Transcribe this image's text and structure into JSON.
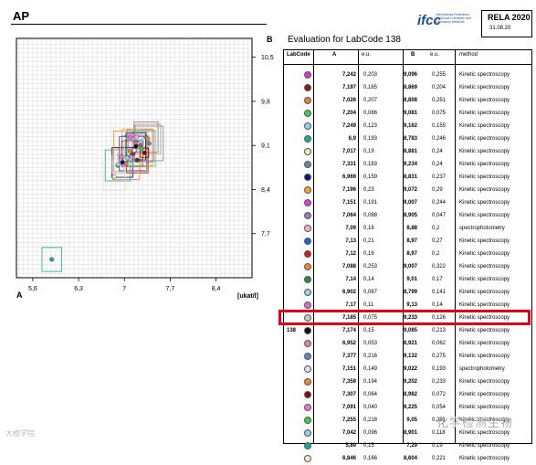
{
  "title": "AP",
  "logo": {
    "text": "ifcc",
    "subtext": "International Federation of Clinical Chemistry and Laboratory Medicine"
  },
  "rela": {
    "label": "RELA 2020",
    "date": "31.08.20"
  },
  "evaluation_title": "Evaluation for LabCode 138",
  "table": {
    "headers": {
      "labcode": "LabCode",
      "a": "A",
      "ea": "e.u.",
      "b": "B",
      "eb": "e.u.",
      "method": "method"
    },
    "highlight_labcode": "138",
    "rows": [
      {
        "a": "7,242",
        "ea": "0,203",
        "b": "9,096",
        "eb": "0,255",
        "method": "Kinetic spectroscopy",
        "color": "#d63ad6"
      },
      {
        "a": "7,197",
        "ea": "0,165",
        "b": "8,869",
        "eb": "0,204",
        "method": "Kinetic spectroscopy",
        "color": "#8b1a1a"
      },
      {
        "a": "7,026",
        "ea": "0,207",
        "b": "8,808",
        "eb": "0,251",
        "method": "Kinetic spectroscopy",
        "color": "#e8823a"
      },
      {
        "a": "7,204",
        "ea": "0,086",
        "b": "9,081",
        "eb": "0,075",
        "method": "Kinetic spectroscopy",
        "color": "#3ecf4a"
      },
      {
        "a": "7,249",
        "ea": "0,123",
        "b": "9,162",
        "eb": "0,155",
        "method": "Kinetic spectroscopy",
        "color": "#8fd0ea"
      },
      {
        "a": "6,9",
        "ea": "0,193",
        "b": "8,783",
        "eb": "0,246",
        "method": "Kinetic spectroscopy",
        "color": "#1fa79a"
      },
      {
        "a": "7,017",
        "ea": "0,19",
        "b": "8,881",
        "eb": "0,24",
        "method": "Kinetic spectroscopy",
        "color": "#f6e6c0"
      },
      {
        "a": "7,331",
        "ea": "0,183",
        "b": "9,234",
        "eb": "0,24",
        "method": "Kinetic spectroscopy",
        "color": "#7080a8"
      },
      {
        "a": "6,969",
        "ea": "0,159",
        "b": "8,831",
        "eb": "0,237",
        "method": "Kinetic spectroscopy",
        "color": "#0a1a7a"
      },
      {
        "a": "7,196",
        "ea": "0,23",
        "b": "9,072",
        "eb": "0,29",
        "method": "Kinetic spectroscopy",
        "color": "#f5a623"
      },
      {
        "a": "7,151",
        "ea": "0,191",
        "b": "9,007",
        "eb": "0,244",
        "method": "Kinetic spectroscopy",
        "color": "#e040e0"
      },
      {
        "a": "7,064",
        "ea": "0,088",
        "b": "8,905",
        "eb": "0,047",
        "method": "Kinetic spectroscopy",
        "color": "#9a7ad0"
      },
      {
        "a": "7,09",
        "ea": "0,16",
        "b": "8,88",
        "eb": "0,2",
        "method": "spectrophotometry",
        "color": "#f4b0c8"
      },
      {
        "a": "7,13",
        "ea": "0,21",
        "b": "8,97",
        "eb": "0,27",
        "method": "Kinetic spectroscopy",
        "color": "#2a5fc0"
      },
      {
        "a": "7,12",
        "ea": "0,16",
        "b": "8,97",
        "eb": "0,2",
        "method": "Kinetic spectroscopy",
        "color": "#d01a1a"
      },
      {
        "a": "7,088",
        "ea": "0,253",
        "b": "9,007",
        "eb": "0,322",
        "method": "Kinetic spectroscopy",
        "color": "#f08a30"
      },
      {
        "a": "7,14",
        "ea": "0,14",
        "b": "9,01",
        "eb": "0,17",
        "method": "Kinetic spectroscopy",
        "color": "#2e8b3a"
      },
      {
        "a": "6,902",
        "ea": "0,087",
        "b": "8,799",
        "eb": "0,141",
        "method": "Kinetic spectroscopy",
        "color": "#9ad0e8"
      },
      {
        "a": "7,17",
        "ea": "0,11",
        "b": "9,13",
        "eb": "0,14",
        "method": "Kinetic spectroscopy",
        "color": "#d070d0"
      },
      {
        "a": "7,185",
        "ea": "0,075",
        "b": "9,233",
        "eb": "0,126",
        "method": "Kinetic spectroscopy",
        "color": "#c8c8c8"
      },
      {
        "labcode": "138",
        "a": "7,174",
        "ea": "0,15",
        "b": "9,085",
        "eb": "0,213",
        "method": "Kinetic spectroscopy",
        "color": "#111111"
      },
      {
        "a": "6,952",
        "ea": "0,053",
        "b": "8,921",
        "eb": "0,062",
        "method": "Kinetic spectroscopy",
        "color": "#e08aa0"
      },
      {
        "a": "7,377",
        "ea": "0,216",
        "b": "9,132",
        "eb": "0,275",
        "method": "Kinetic spectroscopy",
        "color": "#5a8ac0"
      },
      {
        "a": "7,151",
        "ea": "0,149",
        "b": "9,022",
        "eb": "0,193",
        "method": "spectrophotometry",
        "color": "#cfe4f4"
      },
      {
        "a": "7,359",
        "ea": "0,194",
        "b": "9,202",
        "eb": "0,233",
        "method": "Kinetic spectroscopy",
        "color": "#f08a30"
      },
      {
        "a": "7,307",
        "ea": "0,064",
        "b": "8,982",
        "eb": "0,072",
        "method": "Kinetic spectroscopy",
        "color": "#7a1010"
      },
      {
        "a": "7,091",
        "ea": "0,040",
        "b": "9,225",
        "eb": "0,054",
        "method": "Kinetic spectroscopy",
        "color": "#f070e0"
      },
      {
        "a": "7,255",
        "ea": "0,218",
        "b": "9,05",
        "eb": "0,281",
        "method": "Kinetic spectroscopy",
        "color": "#3ecf4a"
      },
      {
        "a": "7,042",
        "ea": "0,096",
        "b": "8,901",
        "eb": "0,118",
        "method": "Kinetic spectroscopy",
        "color": "#8fd0ea"
      },
      {
        "a": "5,89",
        "ea": "0,15",
        "b": "7,29",
        "eb": "0,19",
        "method": "Kinetic spectroscopy",
        "color": "#1fa79a"
      },
      {
        "a": "6,846",
        "ea": "0,166",
        "b": "8,604",
        "eb": "0,221",
        "method": "Kinetic spectroscopy",
        "color": "#f6e6c0"
      }
    ]
  },
  "chart_data": {
    "type": "scatter",
    "xlabel": "A",
    "ylabel": "B",
    "unit_label": "[ukat/l]",
    "xticks": [
      "5,6",
      "6,3",
      "7",
      "7,7",
      "8,4"
    ],
    "yticks": [
      "10,5",
      "9,8",
      "9,1",
      "8,4",
      "7,7"
    ],
    "xlim": [
      5.35,
      8.95
    ],
    "ylim": [
      7.0,
      10.8
    ],
    "grid": true,
    "error_boxes": true,
    "points": [
      {
        "x": 7.242,
        "y": 9.096,
        "ex": 0.203,
        "ey": 0.255,
        "color": "#d63ad6"
      },
      {
        "x": 7.197,
        "y": 8.869,
        "ex": 0.165,
        "ey": 0.204,
        "color": "#8b1a1a"
      },
      {
        "x": 7.026,
        "y": 8.808,
        "ex": 0.207,
        "ey": 0.251,
        "color": "#e8823a"
      },
      {
        "x": 7.204,
        "y": 9.081,
        "ex": 0.086,
        "ey": 0.075,
        "color": "#3ecf4a"
      },
      {
        "x": 7.249,
        "y": 9.162,
        "ex": 0.123,
        "ey": 0.155,
        "color": "#8fd0ea"
      },
      {
        "x": 6.9,
        "y": 8.783,
        "ex": 0.193,
        "ey": 0.246,
        "color": "#1fa79a"
      },
      {
        "x": 7.017,
        "y": 8.881,
        "ex": 0.19,
        "ey": 0.24,
        "color": "#f6e6c0"
      },
      {
        "x": 7.331,
        "y": 9.234,
        "ex": 0.183,
        "ey": 0.24,
        "color": "#7080a8"
      },
      {
        "x": 6.969,
        "y": 8.831,
        "ex": 0.159,
        "ey": 0.237,
        "color": "#0a1a7a"
      },
      {
        "x": 7.196,
        "y": 9.072,
        "ex": 0.23,
        "ey": 0.29,
        "color": "#f5a623"
      },
      {
        "x": 7.151,
        "y": 9.007,
        "ex": 0.191,
        "ey": 0.244,
        "color": "#e040e0"
      },
      {
        "x": 7.064,
        "y": 8.905,
        "ex": 0.088,
        "ey": 0.047,
        "color": "#9a7ad0"
      },
      {
        "x": 7.09,
        "y": 8.88,
        "ex": 0.16,
        "ey": 0.2,
        "color": "#f4b0c8"
      },
      {
        "x": 7.13,
        "y": 8.97,
        "ex": 0.21,
        "ey": 0.27,
        "color": "#2a5fc0"
      },
      {
        "x": 7.12,
        "y": 8.97,
        "ex": 0.16,
        "ey": 0.2,
        "color": "#d01a1a"
      },
      {
        "x": 7.088,
        "y": 9.007,
        "ex": 0.253,
        "ey": 0.322,
        "color": "#f08a30"
      },
      {
        "x": 7.14,
        "y": 9.01,
        "ex": 0.14,
        "ey": 0.17,
        "color": "#2e8b3a"
      },
      {
        "x": 6.902,
        "y": 8.799,
        "ex": 0.087,
        "ey": 0.141,
        "color": "#9ad0e8"
      },
      {
        "x": 7.17,
        "y": 9.13,
        "ex": 0.11,
        "ey": 0.14,
        "color": "#d070d0"
      },
      {
        "x": 7.185,
        "y": 9.233,
        "ex": 0.075,
        "ey": 0.126,
        "color": "#c8c8c8"
      },
      {
        "x": 7.174,
        "y": 9.085,
        "ex": 0.15,
        "ey": 0.213,
        "color": "#111111"
      },
      {
        "x": 6.952,
        "y": 8.921,
        "ex": 0.053,
        "ey": 0.062,
        "color": "#e08aa0"
      },
      {
        "x": 7.377,
        "y": 9.132,
        "ex": 0.216,
        "ey": 0.275,
        "color": "#5a8ac0"
      },
      {
        "x": 7.151,
        "y": 9.022,
        "ex": 0.149,
        "ey": 0.193,
        "color": "#cfe4f4"
      },
      {
        "x": 7.359,
        "y": 9.202,
        "ex": 0.194,
        "ey": 0.233,
        "color": "#f08a30"
      },
      {
        "x": 7.307,
        "y": 8.982,
        "ex": 0.064,
        "ey": 0.072,
        "color": "#7a1010"
      },
      {
        "x": 7.091,
        "y": 9.225,
        "ex": 0.04,
        "ey": 0.054,
        "color": "#f070e0"
      },
      {
        "x": 7.255,
        "y": 9.05,
        "ex": 0.218,
        "ey": 0.281,
        "color": "#3ecf4a"
      },
      {
        "x": 7.042,
        "y": 8.901,
        "ex": 0.096,
        "ey": 0.118,
        "color": "#8fd0ea"
      },
      {
        "x": 5.89,
        "y": 7.29,
        "ex": 0.15,
        "ey": 0.19,
        "color": "#1fa79a"
      },
      {
        "x": 6.846,
        "y": 8.604,
        "ex": 0.166,
        "ey": 0.221,
        "color": "#f6e6c0"
      }
    ]
  },
  "watermarks": {
    "left": "大橙学院",
    "right": "化学检测生物"
  },
  "colors": {
    "highlight": "#e2001a",
    "logo": "#1e4f8c"
  }
}
